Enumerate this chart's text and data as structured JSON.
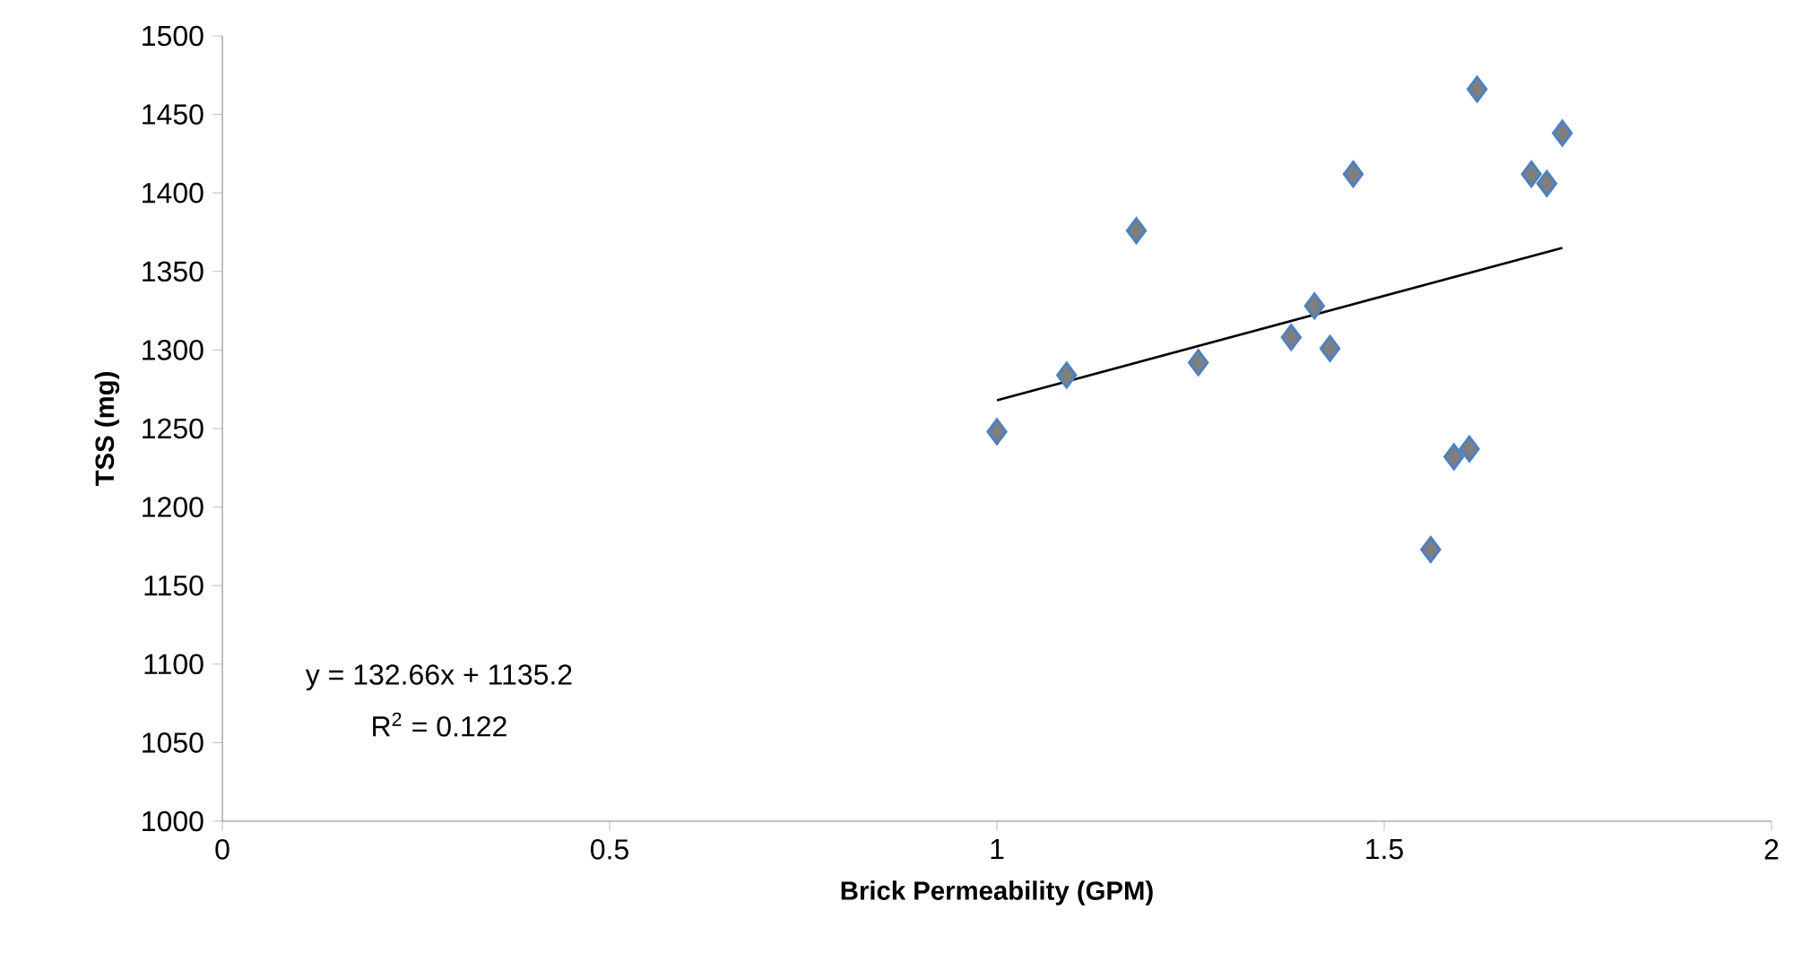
{
  "chart_data": {
    "type": "scatter",
    "xlabel": "Brick Permeability (GPM)",
    "ylabel": "TSS (mg)",
    "annotations": [
      "y = 132.66x + 1135.2",
      "R$^{2}$ = 0.122"
    ],
    "xlim": [
      0,
      2
    ],
    "ylim": [
      1000,
      1500
    ],
    "xticks": [
      0,
      0.5,
      1,
      1.5,
      2
    ],
    "yticks": [
      1000,
      1050,
      1100,
      1150,
      1200,
      1250,
      1300,
      1350,
      1400,
      1450,
      1500
    ],
    "marker": "diamond",
    "series": [
      {
        "color": "#7f7f7f",
        "x": [
          1.0,
          1.09,
          1.18,
          1.26,
          1.38,
          1.41,
          1.43,
          1.46,
          1.56,
          1.59,
          1.61,
          1.62,
          1.69,
          1.71,
          1.73
        ],
        "values": [
          1248,
          1284,
          1376,
          1292,
          1308,
          1328,
          1301,
          1412,
          1173,
          1232,
          1237,
          1466,
          1412,
          1406,
          1438
        ]
      },
      {
        "type": "line",
        "color": "#000000",
        "marker": "none",
        "x": [
          1.0,
          1.73
        ],
        "values": [
          1268,
          1365
        ]
      }
    ]
  }
}
